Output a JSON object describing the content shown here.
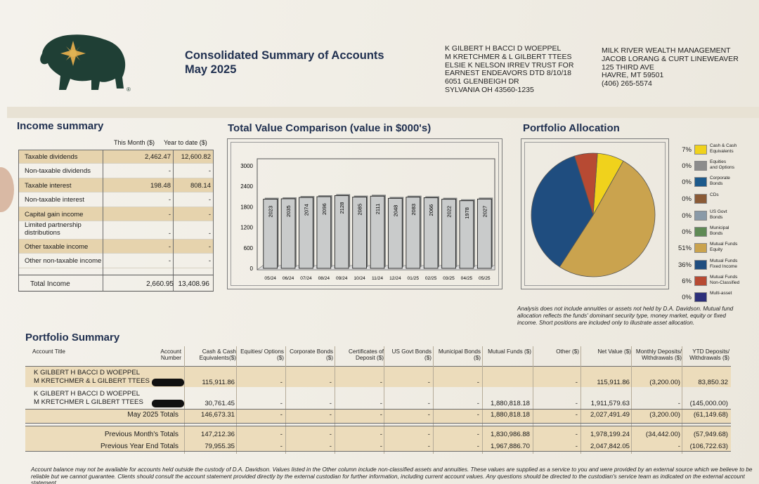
{
  "header": {
    "title_line1": "Consolidated Summary of Accounts",
    "title_line2": "May 2025",
    "client_address": [
      "K GILBERT H BACCI D WOEPPEL",
      "M KRETCHMER & L GILBERT TTEES",
      "ELSIE K NELSON IRREV TRUST FOR",
      "EARNEST ENDEAVORS DTD 8/10/18",
      "6051 GLENBEIGH DR",
      "SYLVANIA OH  43560-1235"
    ],
    "firm_address": [
      "MILK RIVER WEALTH MANAGEMENT",
      "JACOB LORANG & CURT LINEWEAVER",
      "125 THIRD AVE",
      "HAVRE, MT 59501",
      "(406) 265-5574"
    ],
    "logo_icon": "bison-star-logo-icon",
    "logo_mark": "®"
  },
  "income_summary": {
    "title": "Income summary",
    "col_this_month": "This Month ($)",
    "col_ytd": "Year to date ($)",
    "rows": [
      {
        "label": "Taxable dividends",
        "this_month": "2,462.47",
        "ytd": "12,600.82"
      },
      {
        "label": "Non-taxable dividends",
        "this_month": "-",
        "ytd": "-"
      },
      {
        "label": "Taxable interest",
        "this_month": "198.48",
        "ytd": "808.14"
      },
      {
        "label": "Non-taxable interest",
        "this_month": "-",
        "ytd": "-"
      },
      {
        "label": "Capital gain income",
        "this_month": "-",
        "ytd": "-"
      },
      {
        "label": "Limited partnership distributions",
        "this_month": "-",
        "ytd": "-"
      },
      {
        "label": "Other taxable income",
        "this_month": "-",
        "ytd": "-"
      },
      {
        "label": "Other non-taxable income",
        "this_month": "-",
        "ytd": "-"
      }
    ],
    "total_label": "Total Income",
    "total_this_month": "2,660.95",
    "total_ytd": "13,408.96"
  },
  "total_value_title": "Total Value Comparison (value in $000's)",
  "chart_data": [
    {
      "type": "bar",
      "title": "Total Value Comparison (value in $000's)",
      "categories": [
        "05/24",
        "06/24",
        "07/24",
        "08/24",
        "09/24",
        "10/24",
        "11/24",
        "12/24",
        "01/25",
        "02/25",
        "03/25",
        "04/25",
        "05/25"
      ],
      "values": [
        2023,
        2035,
        2074,
        2096,
        2128,
        2085,
        2111,
        2048,
        2083,
        2066,
        2022,
        1978,
        2027
      ],
      "value_labels": [
        "2023",
        "2035",
        "2074",
        "2096",
        "2128",
        "2085",
        "2111",
        "2048",
        "2083",
        "2066",
        "2022",
        "1978",
        "2027"
      ],
      "ylim": [
        0,
        3000
      ],
      "yticks": [
        "0",
        "600",
        "1200",
        "1800",
        "2400",
        "3000"
      ],
      "grid": false,
      "colors": {
        "bar": "#c9cbcb",
        "bar_edge": "#222222"
      }
    },
    {
      "type": "pie",
      "title": "Portfolio Allocation",
      "legend_position": "right",
      "slices": [
        {
          "label": "Cash & Cash Equivalents",
          "value": 7,
          "pct": "7%",
          "color": "#f0d21c"
        },
        {
          "label": "Equities and Options",
          "value": 0,
          "pct": "0%",
          "color": "#8c8c8c"
        },
        {
          "label": "Corporate Bonds",
          "value": 0,
          "pct": "0%",
          "color": "#1d5a8c"
        },
        {
          "label": "CDs",
          "value": 0,
          "pct": "0%",
          "color": "#8a5a36"
        },
        {
          "label": "US Govt Bonds",
          "value": 0,
          "pct": "0%",
          "color": "#8a9aa8"
        },
        {
          "label": "Municipal Bonds",
          "value": 0,
          "pct": "0%",
          "color": "#5f8a55"
        },
        {
          "label": "Mutual Funds Equity",
          "value": 51,
          "pct": "51%",
          "color": "#caa34e"
        },
        {
          "label": "Mutual Funds Fixed Income",
          "value": 36,
          "pct": "36%",
          "color": "#1f4d7f"
        },
        {
          "label": "Mutual Funds Non-Classified",
          "value": 6,
          "pct": "6%",
          "color": "#b74a33"
        },
        {
          "label": "Multi-asset",
          "value": 0,
          "pct": "0%",
          "color": "#2d2f7a"
        }
      ]
    }
  ],
  "portfolio_allocation": {
    "title": "Portfolio Allocation",
    "legend": [
      {
        "pct": "7%",
        "name": [
          "Cash & Cash",
          "Equivalents"
        ],
        "color": "#f0d21c"
      },
      {
        "pct": "0%",
        "name": [
          "Equities",
          "and Options"
        ],
        "color": "#8c8c8c"
      },
      {
        "pct": "0%",
        "name": [
          "Corporate",
          "Bonds"
        ],
        "color": "#1d5a8c"
      },
      {
        "pct": "0%",
        "name": [
          "CDs"
        ],
        "color": "#8a5a36"
      },
      {
        "pct": "0%",
        "name": [
          "US Govt",
          "Bonds"
        ],
        "color": "#8a9aa8"
      },
      {
        "pct": "0%",
        "name": [
          "Municipal",
          "Bonds"
        ],
        "color": "#5f8a55"
      },
      {
        "pct": "51%",
        "name": [
          "Mutual Funds",
          "Equity"
        ],
        "color": "#caa34e"
      },
      {
        "pct": "36%",
        "name": [
          "Mutual Funds",
          "Fixed Income"
        ],
        "color": "#1f4d7f"
      },
      {
        "pct": "6%",
        "name": [
          "Mutual Funds",
          "Non-Classified"
        ],
        "color": "#b74a33"
      },
      {
        "pct": "0%",
        "name": [
          "Multi-asset"
        ],
        "color": "#2d2f7a"
      }
    ],
    "note": "Analysis does not include annuities or assets not held by D.A. Davidson. Mutual fund allocation reflects the funds' dominant security type, money market, equity or fixed income. Short positions are included only to illustrate asset allocation."
  },
  "portfolio_summary": {
    "title": "Portfolio Summary",
    "columns": [
      "Account Title",
      "Account Number",
      "Cash & Cash Equivalents($)",
      "Equities/ Options ($)",
      "Corporate Bonds ($)",
      "Certificates of Deposit ($)",
      "US Govt Bonds ($)",
      "Municipal Bonds ($)",
      "Mutual Funds ($)",
      "Other ($)",
      "Net Value ($)",
      "Monthly Deposits/ Withdrawals ($)",
      "YTD Deposits/ Withdrawals ($)"
    ],
    "accounts": [
      {
        "title": [
          "K GILBERT H BACCI D WOEPPEL",
          "M KRETCHMER & L GILBERT TTEES"
        ],
        "cells": [
          "115,911.86",
          "-",
          "-",
          "-",
          "-",
          "-",
          "",
          "-",
          "115,911.86",
          "(3,200.00)",
          "83,850.32"
        ]
      },
      {
        "title": [
          "K GILBERT H BACCI D WOEPPEL",
          "M KRETCHMER L GILBERT TTEES"
        ],
        "cells": [
          "30,761.45",
          "-",
          "-",
          "-",
          "-",
          "-",
          "1,880,818.18",
          "-",
          "1,911,579.63",
          "-",
          "(145,000.00)"
        ]
      }
    ],
    "totals": [
      {
        "label": "May 2025 Totals",
        "cells": [
          "146,673.31",
          "-",
          "-",
          "-",
          "-",
          "-",
          "1,880,818.18",
          "-",
          "2,027,491.49",
          "(3,200.00)",
          "(61,149.68)"
        ]
      },
      {
        "label": "Previous Month's Totals",
        "cells": [
          "147,212.36",
          "-",
          "-",
          "-",
          "-",
          "-",
          "1,830,986.88",
          "-",
          "1,978,199.24",
          "(34,442.00)",
          "(57,949.68)"
        ]
      },
      {
        "label": "Previous Year End Totals",
        "cells": [
          "79,955.35",
          "-",
          "-",
          "-",
          "-",
          "-",
          "1,967,886.70",
          "-",
          "2,047,842.05",
          "-",
          "(106,722.63)"
        ]
      }
    ]
  },
  "footer": "Account balance may not be available for accounts held outside the custody of D.A. Davidson. Values listed in the Other column include non-classified assets and annuities. These values are supplied as a service to you and were provided by an external source which we believe to be reliable but we cannot guarantee. Clients should consult the account statement provided directly by the external custodian for further information, including current account values. Any questions should be directed to the custodian's service team as indicated on the external account statement."
}
